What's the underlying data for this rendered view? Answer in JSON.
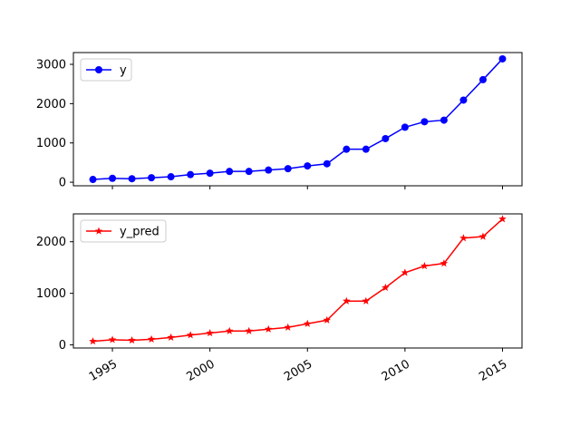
{
  "chart_data": [
    {
      "type": "line",
      "x": [
        1994,
        1995,
        1996,
        1997,
        1998,
        1999,
        2000,
        2001,
        2002,
        2003,
        2004,
        2005,
        2006,
        2007,
        2008,
        2009,
        2010,
        2011,
        2012,
        2013,
        2014,
        2015
      ],
      "series": [
        {
          "name": "y",
          "color": "#0000ff",
          "marker": "circle",
          "values": [
            70,
            100,
            90,
            115,
            140,
            195,
            230,
            275,
            275,
            310,
            345,
            415,
            470,
            840,
            840,
            1110,
            1400,
            1540,
            1580,
            2090,
            2610,
            3140
          ]
        }
      ],
      "xticks": [
        1995,
        2000,
        2005,
        2010,
        2015
      ],
      "xtick_labels_visible": false,
      "yticks": [
        0,
        1000,
        2000,
        3000
      ],
      "ylim": [
        -90,
        3300
      ],
      "xlim": [
        1993.0,
        2016.0
      ],
      "legend": "upper-left",
      "grid": false,
      "title": "",
      "xlabel": "",
      "ylabel": ""
    },
    {
      "type": "line",
      "x": [
        1994,
        1995,
        1996,
        1997,
        1998,
        1999,
        2000,
        2001,
        2002,
        2003,
        2004,
        2005,
        2006,
        2007,
        2008,
        2009,
        2010,
        2011,
        2012,
        2013,
        2014,
        2015
      ],
      "series": [
        {
          "name": "y_pred",
          "color": "#ff0000",
          "marker": "star",
          "values": [
            70,
            100,
            90,
            110,
            145,
            190,
            230,
            270,
            270,
            305,
            340,
            410,
            480,
            850,
            850,
            1110,
            1400,
            1530,
            1580,
            2070,
            2100,
            2440
          ]
        }
      ],
      "xticks": [
        1995,
        2000,
        2005,
        2010,
        2015
      ],
      "xtick_labels_visible": true,
      "yticks": [
        0,
        1000,
        2000
      ],
      "ylim": [
        -60,
        2540
      ],
      "xlim": [
        1993.0,
        2016.0
      ],
      "legend": "upper-left",
      "grid": false,
      "title": "",
      "xlabel": "",
      "ylabel": ""
    }
  ]
}
